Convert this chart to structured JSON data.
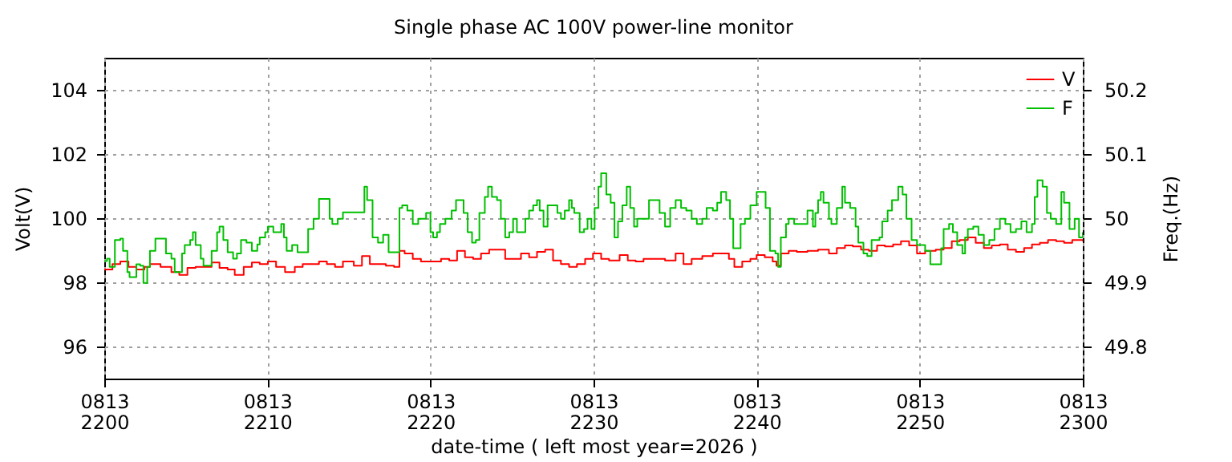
{
  "chart_data": {
    "type": "step",
    "title": "Single phase AC 100V power-line monitor",
    "xlabel": "date-time ( left most year=2026 )",
    "ylabel": "Volt(V)",
    "y2label": "Freq.(Hz)",
    "xlim": [
      "2026-08-13T22:00",
      "2026-08-13T23:00"
    ],
    "xticks": [
      {
        "value": "2026-08-13T22:00",
        "label": "0813\n2200"
      },
      {
        "value": "2026-08-13T22:10",
        "label": "0813\n2210"
      },
      {
        "value": "2026-08-13T22:20",
        "label": "0813\n2220"
      },
      {
        "value": "2026-08-13T22:30",
        "label": "0813\n2230"
      },
      {
        "value": "2026-08-13T22:40",
        "label": "0813\n2240"
      },
      {
        "value": "2026-08-13T22:50",
        "label": "0813\n2250"
      },
      {
        "value": "2026-08-13T23:00",
        "label": "0813\n2300"
      }
    ],
    "ylim": [
      95,
      105
    ],
    "yticks": [
      96,
      98,
      100,
      102,
      104
    ],
    "y2lim": [
      49.75,
      50.25
    ],
    "y2ticks": [
      49.8,
      49.9,
      50,
      50.1,
      50.2
    ],
    "grid": true,
    "legend": "top right",
    "series": [
      {
        "name": "V",
        "color": "#ff0000",
        "x": [
          "2026-08-13T22:00:00",
          "2026-08-13T22:00:30",
          "2026-08-13T22:00:59",
          "2026-08-13T22:01:29",
          "2026-08-13T22:01:58",
          "2026-08-13T22:02:28",
          "2026-08-13T22:02:48",
          "2026-08-13T22:03:27",
          "2026-08-13T22:04:07",
          "2026-08-13T22:04:36",
          "2026-08-13T22:05:06",
          "2026-08-13T22:05:36",
          "2026-08-13T22:06:05",
          "2026-08-13T22:06:35",
          "2026-08-13T22:07:04",
          "2026-08-13T22:07:34",
          "2026-08-13T22:08:00",
          "2026-08-13T22:08:33",
          "2026-08-13T22:09:03",
          "2026-08-13T22:09:32",
          "2026-08-13T22:10:02",
          "2026-08-13T22:10:32",
          "2026-08-13T22:11:05",
          "2026-08-13T22:11:41",
          "2026-08-13T22:12:10",
          "2026-08-13T22:12:40",
          "2026-08-13T22:13:10",
          "2026-08-13T22:13:39",
          "2026-08-13T22:14:09",
          "2026-08-13T22:14:38",
          "2026-08-13T22:15:18",
          "2026-08-13T22:15:48",
          "2026-08-13T22:16:17",
          "2026-08-13T22:16:47",
          "2026-08-13T22:17:16",
          "2026-08-13T22:17:46",
          "2026-08-13T22:18:06",
          "2026-08-13T22:18:25",
          "2026-08-13T22:18:55",
          "2026-08-13T22:19:25",
          "2026-08-13T22:20:00",
          "2026-08-13T22:20:10",
          "2026-08-13T22:20:39",
          "2026-08-13T22:21:09",
          "2026-08-13T22:21:38",
          "2026-08-13T22:22:07",
          "2026-08-13T22:22:37",
          "2026-08-13T22:23:06",
          "2026-08-13T22:23:36",
          "2026-08-13T22:24:05",
          "2026-08-13T22:24:35",
          "2026-08-13T22:25:04",
          "2026-08-13T22:25:33",
          "2026-08-13T22:26:03",
          "2026-08-13T22:26:32",
          "2026-08-13T22:27:02",
          "2026-08-13T22:27:31",
          "2026-08-13T22:28:00",
          "2026-08-13T22:28:30",
          "2026-08-13T22:28:59",
          "2026-08-13T22:29:29",
          "2026-08-13T22:29:58",
          "2026-08-13T22:30:28",
          "2026-08-13T22:30:57",
          "2026-08-13T22:31:36",
          "2026-08-13T22:32:06",
          "2026-08-13T22:32:35",
          "2026-08-13T22:33:04",
          "2026-08-13T22:33:44",
          "2026-08-13T22:34:23",
          "2026-08-13T22:35:02",
          "2026-08-13T22:35:31",
          "2026-08-13T22:36:01",
          "2026-08-13T22:36:40",
          "2026-08-13T22:37:19",
          "2026-08-13T22:37:49",
          "2026-08-13T22:38:18",
          "2026-08-13T22:38:38",
          "2026-08-13T22:39:07",
          "2026-08-13T22:39:37",
          "2026-08-13T22:40:00",
          "2026-08-13T22:40:30",
          "2026-08-13T22:40:59",
          "2026-08-13T22:41:13",
          "2026-08-13T22:41:29",
          "2026-08-13T22:41:58",
          "2026-08-13T22:42:28",
          "2026-08-13T22:43:07",
          "2026-08-13T22:43:46",
          "2026-08-13T22:44:26",
          "2026-08-13T22:44:55",
          "2026-08-13T22:45:25",
          "2026-08-13T22:45:54",
          "2026-08-13T22:46:24",
          "2026-08-13T22:46:53",
          "2026-08-13T22:47:23",
          "2026-08-13T22:47:52",
          "2026-08-13T22:48:22",
          "2026-08-13T22:48:51",
          "2026-08-13T22:49:21",
          "2026-08-13T22:49:50",
          "2026-08-13T22:50:20",
          "2026-08-13T22:50:59",
          "2026-08-13T22:51:28",
          "2026-08-13T22:51:58",
          "2026-08-13T22:52:27",
          "2026-08-13T22:52:57",
          "2026-08-13T22:53:26",
          "2026-08-13T22:53:56",
          "2026-08-13T22:54:25",
          "2026-08-13T22:54:55",
          "2026-08-13T22:55:24",
          "2026-08-13T22:55:54",
          "2026-08-13T22:56:24",
          "2026-08-13T22:56:53",
          "2026-08-13T22:57:22",
          "2026-08-13T22:57:52",
          "2026-08-13T22:58:22",
          "2026-08-13T22:58:51",
          "2026-08-13T22:59:21",
          "2026-08-13T23:00:00"
        ],
        "values": [
          98.4,
          98.57,
          98.65,
          98.48,
          98.4,
          98.48,
          98.57,
          98.48,
          98.32,
          98.23,
          98.45,
          98.48,
          98.48,
          98.62,
          98.45,
          98.4,
          98.23,
          98.48,
          98.62,
          98.57,
          98.65,
          98.48,
          98.32,
          98.48,
          98.57,
          98.57,
          98.65,
          98.57,
          98.48,
          98.65,
          98.52,
          98.82,
          98.57,
          98.57,
          98.52,
          98.48,
          98.98,
          98.9,
          98.73,
          98.65,
          98.65,
          98.65,
          98.73,
          98.68,
          98.98,
          98.78,
          98.73,
          98.9,
          99.02,
          99.02,
          98.73,
          98.73,
          98.9,
          98.78,
          98.95,
          99.02,
          98.68,
          98.57,
          98.48,
          98.57,
          98.73,
          98.9,
          98.73,
          98.68,
          98.85,
          98.68,
          98.65,
          98.73,
          98.73,
          98.68,
          98.9,
          98.57,
          98.73,
          98.82,
          98.9,
          98.9,
          98.73,
          98.48,
          98.65,
          98.73,
          98.85,
          98.78,
          98.65,
          98.52,
          98.9,
          98.98,
          98.95,
          98.98,
          99.02,
          98.9,
          99.07,
          99.15,
          99.12,
          99.02,
          98.98,
          99.15,
          99.12,
          99.18,
          99.28,
          99.15,
          98.9,
          98.98,
          99.02,
          99.07,
          99.28,
          99.32,
          99.4,
          99.23,
          99.07,
          99.15,
          99.18,
          99.02,
          98.95,
          99.07,
          99.18,
          99.23,
          99.32,
          99.28,
          99.23,
          99.32,
          99.28
        ]
      },
      {
        "name": "F",
        "color": "#00c000",
        "axis": "y2",
        "x": [
          "2026-08-13T22:00:00",
          "2026-08-13T22:00:10",
          "2026-08-13T22:00:20",
          "2026-08-13T22:00:39",
          "2026-08-13T22:00:59",
          "2026-08-13T22:01:09",
          "2026-08-13T22:01:25",
          "2026-08-13T22:01:33",
          "2026-08-13T22:01:53",
          "2026-08-13T22:01:58",
          "2026-08-13T22:02:12",
          "2026-08-13T22:02:24",
          "2026-08-13T22:02:38",
          "2026-08-13T22:02:48",
          "2026-08-13T22:03:08",
          "2026-08-13T22:03:31",
          "2026-08-13T22:03:47",
          "2026-08-13T22:04:07",
          "2026-08-13T22:04:19",
          "2026-08-13T22:04:36",
          "2026-08-13T22:04:46",
          "2026-08-13T22:04:56",
          "2026-08-13T22:05:16",
          "2026-08-13T22:05:26",
          "2026-08-13T22:05:36",
          "2026-08-13T22:05:55",
          "2026-08-13T22:06:05",
          "2026-08-13T22:06:25",
          "2026-08-13T22:06:35",
          "2026-08-13T22:06:55",
          "2026-08-13T22:07:04",
          "2026-08-13T22:07:18",
          "2026-08-13T22:07:34",
          "2026-08-13T22:07:54",
          "2026-08-13T22:08:08",
          "2026-08-13T22:08:23",
          "2026-08-13T22:08:43",
          "2026-08-13T22:09:03",
          "2026-08-13T22:09:23",
          "2026-08-13T22:09:32",
          "2026-08-13T22:09:52",
          "2026-08-13T22:10:02",
          "2026-08-13T22:10:22",
          "2026-08-13T22:10:51",
          "2026-08-13T22:11:01",
          "2026-08-13T22:11:11",
          "2026-08-13T22:11:31",
          "2026-08-13T22:11:51",
          "2026-08-13T22:12:16",
          "2026-08-13T22:12:30",
          "2026-08-13T22:12:50",
          "2026-08-13T22:13:10",
          "2026-08-13T22:13:29",
          "2026-08-13T22:13:49",
          "2026-08-13T22:13:59",
          "2026-08-13T22:14:19",
          "2026-08-13T22:14:38",
          "2026-08-13T22:15:38",
          "2026-08-13T22:15:57",
          "2026-08-13T22:16:07",
          "2026-08-13T22:16:27",
          "2026-08-13T22:16:47",
          "2026-08-13T22:17:06",
          "2026-08-13T22:17:26",
          "2026-08-13T22:17:46",
          "2026-08-13T22:18:06",
          "2026-08-13T22:18:16",
          "2026-08-13T22:18:35",
          "2026-08-13T22:18:55",
          "2026-08-13T22:19:15",
          "2026-08-13T22:19:44",
          "2026-08-13T22:20:00",
          "2026-08-13T22:20:10",
          "2026-08-13T22:20:24",
          "2026-08-13T22:20:35",
          "2026-08-13T22:20:55",
          "2026-08-13T22:21:18",
          "2026-08-13T22:21:34",
          "2026-08-13T22:21:48",
          "2026-08-13T22:22:02",
          "2026-08-13T22:22:17",
          "2026-08-13T22:22:33",
          "2026-08-13T22:22:47",
          "2026-08-13T22:23:00",
          "2026-08-13T22:23:20",
          "2026-08-13T22:23:32",
          "2026-08-13T22:23:46",
          "2026-08-13T22:24:05",
          "2026-08-13T22:24:19",
          "2026-08-13T22:24:35",
          "2026-08-13T22:24:50",
          "2026-08-13T22:25:04",
          "2026-08-13T22:25:18",
          "2026-08-13T22:25:33",
          "2026-08-13T22:25:49",
          "2026-08-13T22:26:03",
          "2026-08-13T22:26:18",
          "2026-08-13T22:26:32",
          "2026-08-13T22:26:42",
          "2026-08-13T22:26:56",
          "2026-08-13T22:27:11",
          "2026-08-13T22:27:31",
          "2026-08-13T22:27:47",
          "2026-08-13T22:28:00",
          "2026-08-13T22:28:14",
          "2026-08-13T22:28:30",
          "2026-08-13T22:28:40",
          "2026-08-13T22:28:49",
          "2026-08-13T22:29:09",
          "2026-08-13T22:29:25",
          "2026-08-13T22:29:38",
          "2026-08-13T22:29:52",
          "2026-08-13T22:30:04",
          "2026-08-13T22:30:18",
          "2026-08-13T22:30:28",
          "2026-08-13T22:30:47",
          "2026-08-13T22:31:03",
          "2026-08-13T22:31:17",
          "2026-08-13T22:31:30",
          "2026-08-13T22:31:46",
          "2026-08-13T22:32:02",
          "2026-08-13T22:32:15",
          "2026-08-13T22:32:29",
          "2026-08-13T22:32:41",
          "2026-08-13T22:33:04",
          "2026-08-13T22:33:24",
          "2026-08-13T22:33:48",
          "2026-08-13T22:34:03",
          "2026-08-13T22:34:23",
          "2026-08-13T22:34:42",
          "2026-08-13T22:35:02",
          "2026-08-13T22:35:22",
          "2026-08-13T22:35:41",
          "2026-08-13T22:36:01",
          "2026-08-13T22:36:20",
          "2026-08-13T22:36:40",
          "2026-08-13T22:36:56",
          "2026-08-13T22:37:19",
          "2026-08-13T22:37:35",
          "2026-08-13T22:37:49",
          "2026-08-13T22:38:08",
          "2026-08-13T22:38:22",
          "2026-08-13T22:38:34",
          "2026-08-13T22:38:48",
          "2026-08-13T22:39:01",
          "2026-08-13T22:39:17",
          "2026-08-13T22:39:37",
          "2026-08-13T22:40:00",
          "2026-08-13T22:40:20",
          "2026-08-13T22:40:33",
          "2026-08-13T22:40:49",
          "2026-08-13T22:41:09",
          "2026-08-13T22:41:19",
          "2026-08-13T22:41:29",
          "2026-08-13T22:41:48",
          "2026-08-13T22:41:58",
          "2026-08-13T22:42:18",
          "2026-08-13T22:42:57",
          "2026-08-13T22:43:07",
          "2026-08-13T22:43:27",
          "2026-08-13T22:43:36",
          "2026-08-13T22:43:46",
          "2026-08-13T22:43:56",
          "2026-08-13T22:44:06",
          "2026-08-13T22:44:26",
          "2026-08-13T22:44:35",
          "2026-08-13T22:44:55",
          "2026-08-13T22:45:15",
          "2026-08-13T22:45:25",
          "2026-08-13T22:45:44",
          "2026-08-13T22:46:04",
          "2026-08-13T22:46:14",
          "2026-08-13T22:46:33",
          "2026-08-13T22:46:47",
          "2026-08-13T22:47:03",
          "2026-08-13T22:47:32",
          "2026-08-13T22:47:42",
          "2026-08-13T22:48:02",
          "2026-08-13T22:48:18",
          "2026-08-13T22:48:41",
          "2026-08-13T22:48:57",
          "2026-08-13T22:49:11",
          "2026-08-13T22:49:30",
          "2026-08-13T22:49:50",
          "2026-08-13T22:50:10",
          "2026-08-13T22:50:20",
          "2026-08-13T22:50:39",
          "2026-08-13T22:51:09",
          "2026-08-13T22:51:19",
          "2026-08-13T22:51:28",
          "2026-08-13T22:51:48",
          "2026-08-13T22:52:02",
          "2026-08-13T22:52:18",
          "2026-08-13T22:52:37",
          "2026-08-13T22:52:47",
          "2026-08-13T22:52:57",
          "2026-08-13T22:53:17",
          "2026-08-13T22:53:36",
          "2026-08-13T22:53:56",
          "2026-08-13T22:54:16",
          "2026-08-13T22:54:35",
          "2026-08-13T22:54:55",
          "2026-08-13T22:55:15",
          "2026-08-13T22:55:34",
          "2026-08-13T22:55:54",
          "2026-08-13T22:56:14",
          "2026-08-13T22:56:33",
          "2026-08-13T22:56:53",
          "2026-08-13T22:57:03",
          "2026-08-13T22:57:13",
          "2026-08-13T22:57:32",
          "2026-08-13T22:57:48",
          "2026-08-13T22:58:02",
          "2026-08-13T22:58:22",
          "2026-08-13T22:58:41",
          "2026-08-13T22:58:51",
          "2026-08-13T22:59:11",
          "2026-08-13T22:59:30",
          "2026-08-13T22:59:46",
          "2026-08-13T23:00:00"
        ],
        "values": [
          49.933,
          49.937,
          49.924,
          49.966,
          49.968,
          49.949,
          49.916,
          49.908,
          49.908,
          49.928,
          49.926,
          49.899,
          49.924,
          49.949,
          49.968,
          49.968,
          49.945,
          49.937,
          49.916,
          49.916,
          49.945,
          49.958,
          49.966,
          49.978,
          49.958,
          49.937,
          49.926,
          49.926,
          49.949,
          49.978,
          49.987,
          49.966,
          49.947,
          49.937,
          49.945,
          49.966,
          49.962,
          49.949,
          49.959,
          49.97,
          49.978,
          49.987,
          49.978,
          49.991,
          49.97,
          49.949,
          49.958,
          49.947,
          49.947,
          49.983,
          49.999,
          50.03,
          50.03,
          49.999,
          49.991,
          49.999,
          50.009,
          50.009,
          50.049,
          50.028,
          49.97,
          49.962,
          49.974,
          49.947,
          49.947,
          50.016,
          50.02,
          50.012,
          49.991,
          49.999,
          50.008,
          49.978,
          49.97,
          49.978,
          49.991,
          49.999,
          50.012,
          50.028,
          50.028,
          50.008,
          49.978,
          49.962,
          49.966,
          50.008,
          50.033,
          50.049,
          50.033,
          50.028,
          49.999,
          49.97,
          49.978,
          49.999,
          49.978,
          49.978,
          49.999,
          50.012,
          50.02,
          50.028,
          50.012,
          49.987,
          50.02,
          50.02,
          50.008,
          49.999,
          50.012,
          50.028,
          50.016,
          50.008,
          49.978,
          49.983,
          49.999,
          49.983,
          50.016,
          50.049,
          50.07,
          50.037,
          50.024,
          49.97,
          49.995,
          50.02,
          50.049,
          50.016,
          49.987,
          49.999,
          49.999,
          50.028,
          50.028,
          50.008,
          49.987,
          50.016,
          50.028,
          50.016,
          50.012,
          49.999,
          49.991,
          49.999,
          50.016,
          50.012,
          50.024,
          50.041,
          50.028,
          49.999,
          49.953,
          49.953,
          49.991,
          49.999,
          50.02,
          50.041,
          50.041,
          50.016,
          49.949,
          49.945,
          49.924,
          49.97,
          49.991,
          49.999,
          49.991,
          49.991,
          50.012,
          49.987,
          50.008,
          50.028,
          50.041,
          50.024,
          49.999,
          49.991,
          50.016,
          50.049,
          50.024,
          50.016,
          49.987,
          49.962,
          49.945,
          49.941,
          49.966,
          49.97,
          49.995,
          50.012,
          50.028,
          50.049,
          50.037,
          49.999,
          49.966,
          49.958,
          49.958,
          49.949,
          49.928,
          49.928,
          49.953,
          49.983,
          49.991,
          49.978,
          49.958,
          49.945,
          49.97,
          49.983,
          49.987,
          49.974,
          49.958,
          49.966,
          49.983,
          49.999,
          49.991,
          49.978,
          49.983,
          49.995,
          49.978,
          49.991,
          50.033,
          50.059,
          50.049,
          50.008,
          49.999,
          49.991,
          50.041,
          50.024,
          49.983,
          49.999,
          49.97,
          49.978
        ]
      }
    ]
  }
}
